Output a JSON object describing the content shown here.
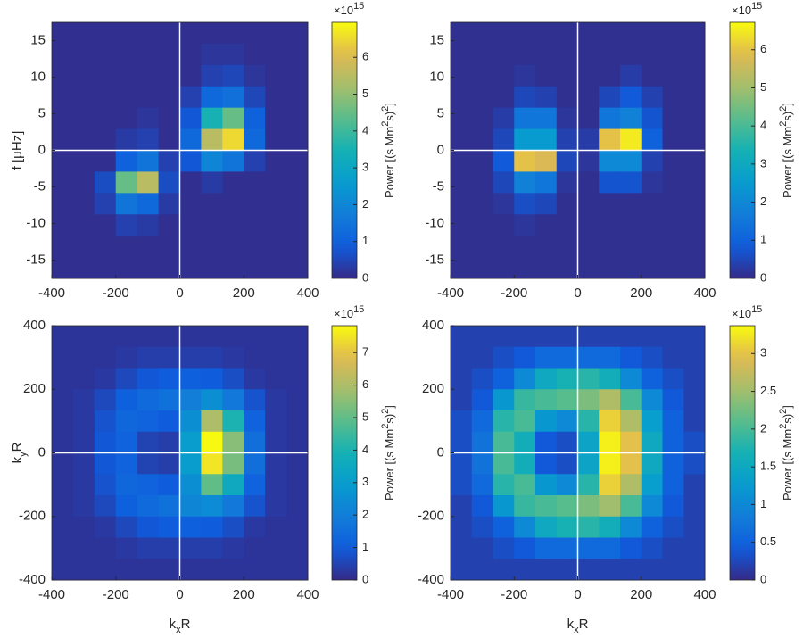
{
  "chart_data": [
    {
      "type": "heatmap",
      "colormap": "parula",
      "zero_lines": true,
      "xlim": [
        -400,
        400
      ],
      "ylim": [
        -17.5,
        17.5
      ],
      "xticks": [
        -400,
        -200,
        0,
        200,
        400
      ],
      "yticks": [
        -15,
        -10,
        -5,
        0,
        5,
        10,
        15
      ],
      "ylabel": [
        "f [μHz]"
      ],
      "clim": [
        0,
        6.95
      ],
      "cticks": [
        0,
        1,
        2,
        3,
        4,
        5,
        6
      ],
      "colorbar_label": [
        "Power [(s Mm",
        "2",
        "s)",
        "2",
        "]"
      ],
      "colorbar_exponent": [
        "×10",
        "15"
      ],
      "z": [
        [
          0.1,
          0.1,
          0.1,
          0.1,
          0.1,
          0.1,
          0.1,
          0.1,
          0.1,
          0.1,
          0.1,
          0.1
        ],
        [
          0.1,
          0.1,
          0.1,
          0.1,
          0.1,
          0.1,
          0.1,
          0.2,
          0.2,
          0.1,
          0.1,
          0.1
        ],
        [
          0.1,
          0.1,
          0.1,
          0.1,
          0.1,
          0.1,
          0.1,
          0.4,
          0.5,
          0.2,
          0.1,
          0.1
        ],
        [
          0.1,
          0.1,
          0.1,
          0.1,
          0.1,
          0.1,
          0.4,
          1.2,
          1.4,
          0.5,
          0.1,
          0.1
        ],
        [
          0.1,
          0.1,
          0.1,
          0.1,
          0.2,
          0.1,
          0.8,
          3.5,
          4.5,
          1.0,
          0.1,
          0.1
        ],
        [
          0.1,
          0.1,
          0.1,
          0.3,
          0.4,
          0.1,
          1.2,
          5.5,
          6.5,
          1.2,
          0.1,
          0.1
        ],
        [
          0.1,
          0.1,
          0.1,
          1.0,
          1.5,
          0.4,
          0.8,
          2.0,
          1.5,
          0.4,
          0.1,
          0.1
        ],
        [
          0.1,
          0.1,
          0.6,
          4.5,
          5.5,
          0.6,
          0.1,
          0.3,
          0.1,
          0.1,
          0.1,
          0.1
        ],
        [
          0.1,
          0.1,
          0.4,
          1.5,
          1.2,
          0.3,
          0.1,
          0.1,
          0.1,
          0.1,
          0.1,
          0.1
        ],
        [
          0.1,
          0.1,
          0.1,
          0.4,
          0.3,
          0.1,
          0.1,
          0.1,
          0.1,
          0.1,
          0.1,
          0.1
        ],
        [
          0.1,
          0.1,
          0.1,
          0.1,
          0.1,
          0.1,
          0.1,
          0.1,
          0.1,
          0.1,
          0.1,
          0.1
        ],
        [
          0.1,
          0.1,
          0.1,
          0.1,
          0.1,
          0.1,
          0.1,
          0.1,
          0.1,
          0.1,
          0.1,
          0.1
        ]
      ]
    },
    {
      "type": "heatmap",
      "colormap": "parula",
      "zero_lines": true,
      "xlim": [
        -400,
        400
      ],
      "ylim": [
        -17.5,
        17.5
      ],
      "xticks": [
        -400,
        -200,
        0,
        200,
        400
      ],
      "yticks": [
        -15,
        -10,
        -5,
        0,
        5,
        10,
        15
      ],
      "clim": [
        0,
        6.72
      ],
      "cticks": [
        0,
        1,
        2,
        3,
        4,
        5,
        6
      ],
      "colorbar_label": [
        "Power [(s Mm",
        "2",
        "s)",
        "2",
        "]"
      ],
      "colorbar_exponent": [
        "×10",
        "15"
      ],
      "z": [
        [
          0.1,
          0.1,
          0.1,
          0.1,
          0.1,
          0.1,
          0.1,
          0.1,
          0.1,
          0.1,
          0.1,
          0.1
        ],
        [
          0.1,
          0.1,
          0.1,
          0.1,
          0.1,
          0.1,
          0.1,
          0.1,
          0.1,
          0.1,
          0.1,
          0.1
        ],
        [
          0.1,
          0.1,
          0.1,
          0.2,
          0.1,
          0.1,
          0.1,
          0.1,
          0.3,
          0.1,
          0.1,
          0.1
        ],
        [
          0.1,
          0.1,
          0.1,
          0.5,
          0.4,
          0.1,
          0.1,
          0.5,
          0.8,
          0.4,
          0.1,
          0.1
        ],
        [
          0.1,
          0.1,
          0.3,
          1.5,
          1.5,
          0.2,
          0.1,
          1.5,
          1.8,
          0.7,
          0.1,
          0.1
        ],
        [
          0.1,
          0.1,
          0.5,
          2.5,
          2.5,
          0.4,
          0.3,
          6.0,
          6.5,
          1.0,
          0.1,
          0.1
        ],
        [
          0.1,
          0.1,
          0.8,
          6.0,
          5.8,
          0.5,
          0.2,
          2.0,
          2.0,
          0.4,
          0.1,
          0.1
        ],
        [
          0.1,
          0.1,
          0.5,
          1.8,
          1.5,
          0.2,
          0.1,
          0.7,
          0.7,
          0.2,
          0.1,
          0.1
        ],
        [
          0.1,
          0.1,
          0.2,
          0.6,
          0.5,
          0.1,
          0.1,
          0.1,
          0.1,
          0.1,
          0.1,
          0.1
        ],
        [
          0.1,
          0.1,
          0.1,
          0.2,
          0.1,
          0.1,
          0.1,
          0.1,
          0.1,
          0.1,
          0.1,
          0.1
        ],
        [
          0.1,
          0.1,
          0.1,
          0.1,
          0.1,
          0.1,
          0.1,
          0.1,
          0.1,
          0.1,
          0.1,
          0.1
        ],
        [
          0.1,
          0.1,
          0.1,
          0.1,
          0.1,
          0.1,
          0.1,
          0.1,
          0.1,
          0.1,
          0.1,
          0.1
        ]
      ]
    },
    {
      "type": "heatmap",
      "colormap": "parula",
      "zero_lines": true,
      "xlim": [
        -400,
        400
      ],
      "ylim": [
        -400,
        400
      ],
      "xticks": [
        -400,
        -200,
        0,
        200,
        400
      ],
      "yticks": [
        -400,
        -200,
        0,
        200,
        400
      ],
      "xlabel": [
        "k",
        "x",
        "R"
      ],
      "ylabel": [
        "k",
        "y",
        "R"
      ],
      "clim": [
        0,
        7.83
      ],
      "cticks": [
        0,
        1,
        2,
        3,
        4,
        5,
        6,
        7
      ],
      "colorbar_label": [
        "Power [(s Mm",
        "2",
        "s)",
        "2",
        "]"
      ],
      "colorbar_exponent": [
        "×10",
        "15"
      ],
      "z": [
        [
          0.2,
          0.2,
          0.2,
          0.2,
          0.2,
          0.2,
          0.2,
          0.2,
          0.2,
          0.2,
          0.2,
          0.2
        ],
        [
          0.2,
          0.2,
          0.2,
          0.3,
          0.4,
          0.4,
          0.4,
          0.4,
          0.3,
          0.2,
          0.2,
          0.2
        ],
        [
          0.2,
          0.2,
          0.3,
          0.6,
          0.9,
          1.0,
          1.1,
          1.0,
          0.7,
          0.3,
          0.2,
          0.2
        ],
        [
          0.2,
          0.3,
          0.6,
          1.1,
          1.4,
          1.6,
          2.0,
          2.5,
          1.8,
          0.8,
          0.3,
          0.2
        ],
        [
          0.2,
          0.3,
          0.8,
          1.3,
          1.2,
          1.0,
          2.5,
          6.0,
          4.0,
          1.2,
          0.3,
          0.2
        ],
        [
          0.2,
          0.3,
          0.9,
          1.2,
          0.5,
          0.4,
          3.0,
          7.8,
          5.5,
          1.5,
          0.3,
          0.2
        ],
        [
          0.2,
          0.3,
          0.9,
          1.2,
          0.5,
          0.4,
          3.0,
          7.5,
          5.3,
          1.5,
          0.3,
          0.2
        ],
        [
          0.2,
          0.3,
          0.8,
          1.3,
          1.2,
          1.0,
          2.5,
          5.0,
          3.5,
          1.2,
          0.3,
          0.2
        ],
        [
          0.2,
          0.3,
          0.6,
          1.1,
          1.4,
          1.6,
          2.2,
          2.4,
          1.8,
          0.8,
          0.3,
          0.2
        ],
        [
          0.2,
          0.2,
          0.3,
          0.6,
          0.9,
          1.0,
          1.1,
          1.0,
          0.7,
          0.3,
          0.2,
          0.2
        ],
        [
          0.2,
          0.2,
          0.2,
          0.3,
          0.4,
          0.4,
          0.4,
          0.4,
          0.3,
          0.2,
          0.2,
          0.2
        ],
        [
          0.2,
          0.2,
          0.2,
          0.2,
          0.2,
          0.2,
          0.2,
          0.2,
          0.2,
          0.2,
          0.2,
          0.2
        ]
      ]
    },
    {
      "type": "heatmap",
      "colormap": "parula",
      "zero_lines": true,
      "xlim": [
        -400,
        400
      ],
      "ylim": [
        -400,
        400
      ],
      "xticks": [
        -400,
        -200,
        0,
        200,
        400
      ],
      "yticks": [
        -400,
        -200,
        0,
        200,
        400
      ],
      "xlabel": [
        "k",
        "x",
        "R"
      ],
      "clim": [
        0,
        3.37
      ],
      "cticks": [
        0,
        0.5,
        1,
        1.5,
        2,
        2.5,
        3
      ],
      "colorbar_label": [
        "Power [(s Mm",
        "2",
        "s)",
        "2",
        "]"
      ],
      "colorbar_exponent": [
        "×10",
        "15"
      ],
      "z": [
        [
          0.2,
          0.2,
          0.2,
          0.2,
          0.2,
          0.2,
          0.2,
          0.2,
          0.2,
          0.2,
          0.2,
          0.2
        ],
        [
          0.2,
          0.2,
          0.3,
          0.4,
          0.6,
          0.6,
          0.6,
          0.6,
          0.4,
          0.3,
          0.2,
          0.2
        ],
        [
          0.2,
          0.3,
          0.5,
          1.0,
          1.5,
          1.7,
          1.8,
          1.6,
          1.0,
          0.5,
          0.3,
          0.2
        ],
        [
          0.2,
          0.4,
          1.2,
          1.9,
          2.0,
          2.1,
          2.3,
          2.6,
          2.0,
          1.0,
          0.4,
          0.2
        ],
        [
          0.3,
          0.6,
          1.8,
          2.0,
          1.2,
          1.0,
          1.8,
          3.1,
          2.6,
          1.3,
          0.5,
          0.2
        ],
        [
          0.3,
          0.7,
          2.0,
          1.6,
          0.4,
          0.3,
          1.4,
          3.3,
          3.0,
          1.5,
          0.5,
          0.3
        ],
        [
          0.3,
          0.7,
          2.0,
          1.6,
          0.4,
          0.3,
          1.4,
          3.3,
          3.0,
          1.5,
          0.5,
          0.3
        ],
        [
          0.3,
          0.6,
          1.8,
          2.0,
          1.2,
          1.0,
          1.8,
          3.1,
          2.6,
          1.3,
          0.5,
          0.2
        ],
        [
          0.2,
          0.4,
          1.2,
          1.9,
          2.0,
          2.1,
          2.3,
          2.5,
          2.0,
          1.0,
          0.4,
          0.2
        ],
        [
          0.2,
          0.3,
          0.5,
          1.0,
          1.5,
          1.7,
          1.8,
          1.6,
          1.0,
          0.5,
          0.3,
          0.2
        ],
        [
          0.2,
          0.2,
          0.3,
          0.4,
          0.6,
          0.6,
          0.6,
          0.6,
          0.4,
          0.3,
          0.2,
          0.2
        ],
        [
          0.2,
          0.2,
          0.2,
          0.2,
          0.2,
          0.2,
          0.2,
          0.2,
          0.2,
          0.2,
          0.2,
          0.2
        ]
      ]
    }
  ]
}
